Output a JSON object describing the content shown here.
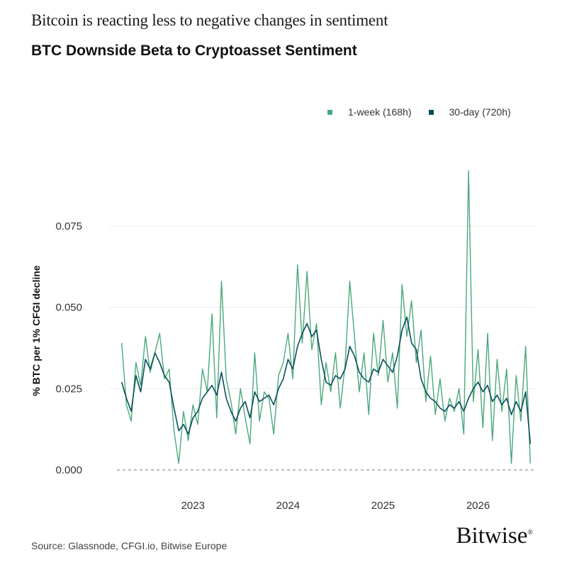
{
  "header": {
    "subtitle": "Bitcoin is reacting less to negative changes in sentiment",
    "title": "BTC Downside Beta to Cryptoasset Sentiment"
  },
  "legend": [
    {
      "label": "1-week (168h)",
      "color": "#4aa97a"
    },
    {
      "label": "30-day (720h)",
      "color": "#0b4f5c"
    }
  ],
  "footer": {
    "source": "Source: Glassnode, CFGI.io, Bitwise Europe",
    "logo_text": "Bitwise",
    "logo_mark": "®"
  },
  "chart_data": {
    "type": "line",
    "title": "BTC Downside Beta to Cryptoasset Sentiment",
    "ylabel": "% BTC per 1% CFGI decline",
    "xlabel": "",
    "ylim": [
      0,
      0.09
    ],
    "xlim": [
      2022.2,
      2026.6
    ],
    "y_ticks": [
      0.0,
      0.025,
      0.05,
      0.075
    ],
    "y_tick_labels": [
      "0.000",
      "0.025",
      "0.050",
      "0.075"
    ],
    "x_ticks": [
      2023,
      2024,
      2025,
      2026
    ],
    "x_tick_labels": [
      "2023",
      "2024",
      "2025",
      "2026"
    ],
    "grid": true,
    "zero_line": "dashed",
    "legend_position": "top-right",
    "series": [
      {
        "name": "1-week (168h)",
        "color": "#4aa97a",
        "x": [
          2022.25,
          2022.3,
          2022.35,
          2022.4,
          2022.45,
          2022.5,
          2022.55,
          2022.6,
          2022.65,
          2022.7,
          2022.75,
          2022.8,
          2022.85,
          2022.9,
          2022.95,
          2023.0,
          2023.05,
          2023.1,
          2023.15,
          2023.2,
          2023.25,
          2023.3,
          2023.35,
          2023.4,
          2023.45,
          2023.5,
          2023.55,
          2023.6,
          2023.65,
          2023.7,
          2023.75,
          2023.8,
          2023.85,
          2023.9,
          2023.95,
          2024.0,
          2024.05,
          2024.1,
          2024.15,
          2024.2,
          2024.25,
          2024.3,
          2024.35,
          2024.4,
          2024.45,
          2024.5,
          2024.55,
          2024.6,
          2024.65,
          2024.7,
          2024.75,
          2024.8,
          2024.85,
          2024.9,
          2024.95,
          2025.0,
          2025.05,
          2025.1,
          2025.15,
          2025.2,
          2025.25,
          2025.3,
          2025.35,
          2025.4,
          2025.45,
          2025.5,
          2025.55,
          2025.6,
          2025.65,
          2025.7,
          2025.75,
          2025.8,
          2025.85,
          2025.9,
          2025.95,
          2026.0,
          2026.05,
          2026.1,
          2026.15,
          2026.2,
          2026.25,
          2026.3,
          2026.35,
          2026.4,
          2026.45,
          2026.5,
          2026.55
        ],
        "values": [
          0.039,
          0.02,
          0.015,
          0.033,
          0.026,
          0.041,
          0.03,
          0.036,
          0.042,
          0.028,
          0.031,
          0.012,
          0.002,
          0.018,
          0.009,
          0.02,
          0.014,
          0.031,
          0.024,
          0.048,
          0.016,
          0.058,
          0.028,
          0.021,
          0.011,
          0.025,
          0.016,
          0.008,
          0.036,
          0.015,
          0.024,
          0.022,
          0.011,
          0.029,
          0.033,
          0.042,
          0.028,
          0.063,
          0.039,
          0.061,
          0.037,
          0.045,
          0.02,
          0.033,
          0.024,
          0.036,
          0.019,
          0.032,
          0.058,
          0.041,
          0.024,
          0.036,
          0.017,
          0.042,
          0.029,
          0.046,
          0.027,
          0.036,
          0.019,
          0.057,
          0.041,
          0.052,
          0.033,
          0.043,
          0.021,
          0.035,
          0.017,
          0.028,
          0.015,
          0.022,
          0.018,
          0.025,
          0.011,
          0.092,
          0.021,
          0.037,
          0.013,
          0.042,
          0.009,
          0.034,
          0.018,
          0.031,
          0.002,
          0.029,
          0.015,
          0.038,
          0.002
        ]
      },
      {
        "name": "30-day (720h)",
        "color": "#0b4f5c",
        "x": [
          2022.25,
          2022.3,
          2022.35,
          2022.4,
          2022.45,
          2022.5,
          2022.55,
          2022.6,
          2022.65,
          2022.7,
          2022.75,
          2022.8,
          2022.85,
          2022.9,
          2022.95,
          2023.0,
          2023.05,
          2023.1,
          2023.15,
          2023.2,
          2023.25,
          2023.3,
          2023.35,
          2023.4,
          2023.45,
          2023.5,
          2023.55,
          2023.6,
          2023.65,
          2023.7,
          2023.75,
          2023.8,
          2023.85,
          2023.9,
          2023.95,
          2024.0,
          2024.05,
          2024.1,
          2024.15,
          2024.2,
          2024.25,
          2024.3,
          2024.35,
          2024.4,
          2024.45,
          2024.5,
          2024.55,
          2024.6,
          2024.65,
          2024.7,
          2024.75,
          2024.8,
          2024.85,
          2024.9,
          2024.95,
          2025.0,
          2025.05,
          2025.1,
          2025.15,
          2025.2,
          2025.25,
          2025.3,
          2025.35,
          2025.4,
          2025.45,
          2025.5,
          2025.55,
          2025.6,
          2025.65,
          2025.7,
          2025.75,
          2025.8,
          2025.85,
          2025.9,
          2025.95,
          2026.0,
          2026.05,
          2026.1,
          2026.15,
          2026.2,
          2026.25,
          2026.3,
          2026.35,
          2026.4,
          2026.45,
          2026.5,
          2026.55
        ],
        "values": [
          0.027,
          0.022,
          0.018,
          0.029,
          0.024,
          0.034,
          0.031,
          0.036,
          0.033,
          0.029,
          0.027,
          0.019,
          0.012,
          0.014,
          0.011,
          0.016,
          0.018,
          0.022,
          0.024,
          0.026,
          0.023,
          0.03,
          0.022,
          0.018,
          0.015,
          0.019,
          0.021,
          0.016,
          0.024,
          0.021,
          0.022,
          0.023,
          0.02,
          0.025,
          0.028,
          0.034,
          0.031,
          0.038,
          0.042,
          0.045,
          0.041,
          0.043,
          0.034,
          0.027,
          0.026,
          0.029,
          0.028,
          0.031,
          0.038,
          0.035,
          0.03,
          0.028,
          0.027,
          0.031,
          0.03,
          0.034,
          0.032,
          0.03,
          0.035,
          0.043,
          0.047,
          0.039,
          0.037,
          0.028,
          0.024,
          0.022,
          0.021,
          0.019,
          0.018,
          0.02,
          0.019,
          0.021,
          0.018,
          0.022,
          0.025,
          0.027,
          0.024,
          0.026,
          0.021,
          0.023,
          0.02,
          0.022,
          0.017,
          0.021,
          0.018,
          0.024,
          0.008
        ]
      }
    ]
  }
}
